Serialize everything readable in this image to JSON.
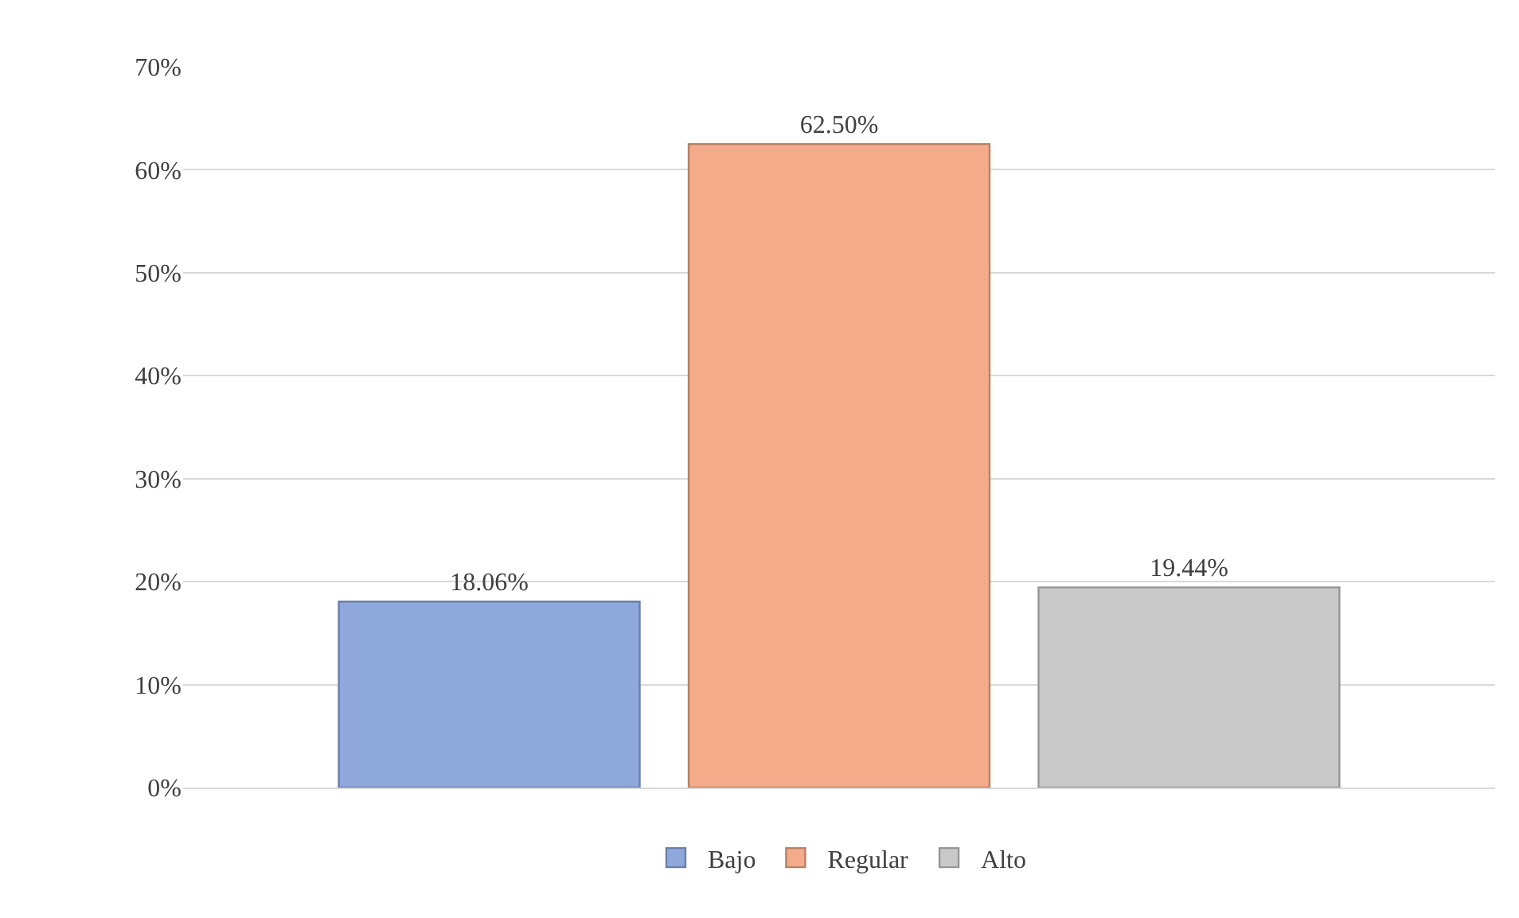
{
  "chart_data": {
    "type": "bar",
    "categories": [
      null
    ],
    "series": [
      {
        "name": "Bajo",
        "color": "#8fa8dc",
        "values": [
          18.06
        ],
        "value_labels": [
          "18.06%"
        ]
      },
      {
        "name": "Regular",
        "color": "#f4ab8a",
        "values": [
          62.5
        ],
        "value_labels": [
          "62.50%"
        ]
      },
      {
        "name": "Alto",
        "color": "#c9c9c9",
        "values": [
          19.44
        ],
        "value_labels": [
          "19.44%"
        ]
      }
    ],
    "ylim": [
      0,
      70
    ],
    "yticks": [
      {
        "value": 0,
        "label": "0%"
      },
      {
        "value": 10,
        "label": "10%"
      },
      {
        "value": 20,
        "label": "20%"
      },
      {
        "value": 30,
        "label": "30%"
      },
      {
        "value": 40,
        "label": "40%"
      },
      {
        "value": 50,
        "label": "50%"
      },
      {
        "value": 60,
        "label": "60%"
      },
      {
        "value": 70,
        "label": "70%"
      }
    ],
    "grid": "y",
    "legend": "bottom"
  }
}
